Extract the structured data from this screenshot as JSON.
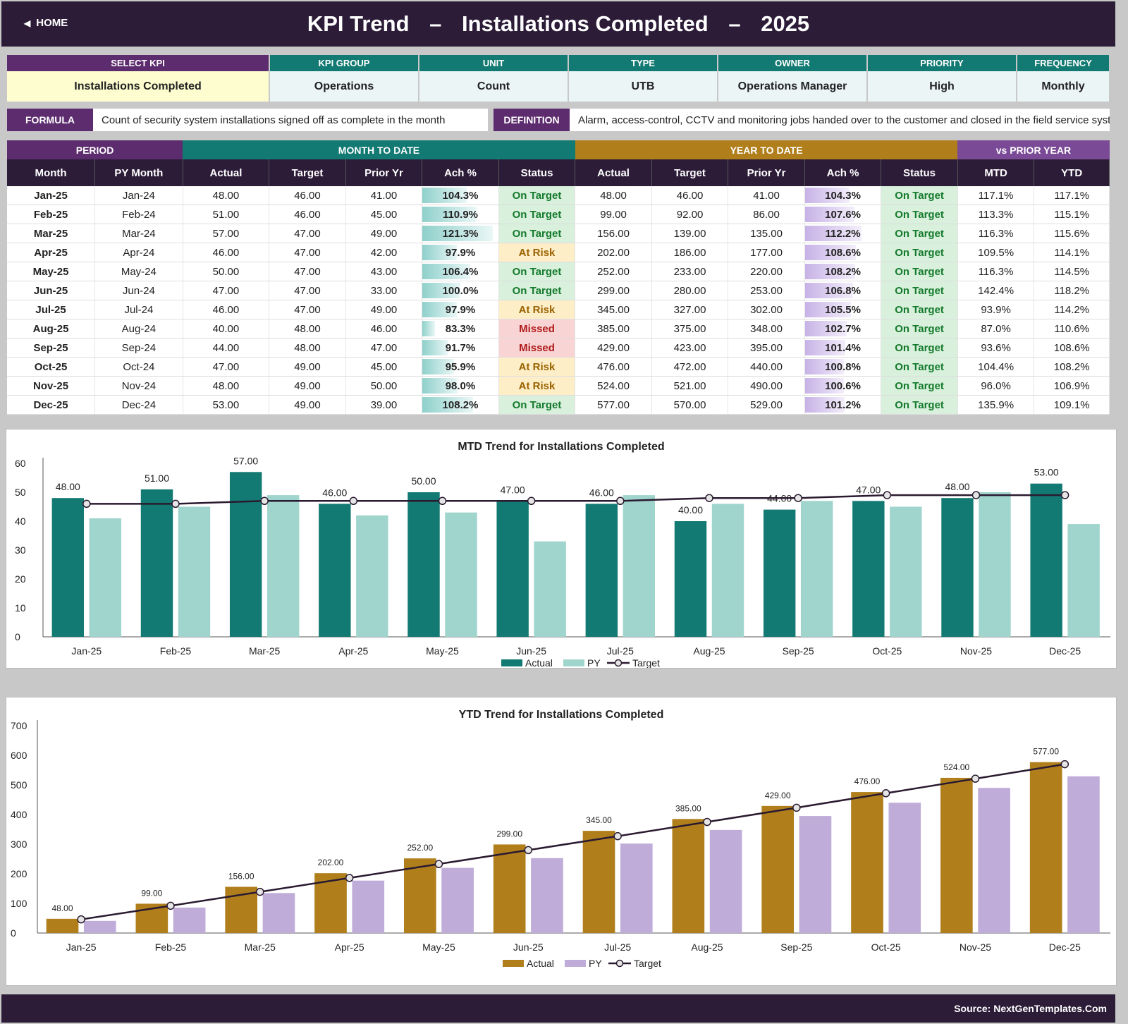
{
  "header": {
    "home_label": "HOME",
    "title_part1": "KPI Trend",
    "dash": "–",
    "title_part2": "Installations Completed",
    "title_year": "2025"
  },
  "meta": {
    "select_kpi_label": "SELECT KPI",
    "select_kpi_value": "Installations Completed",
    "kpi_group_label": "KPI GROUP",
    "kpi_group_value": "Operations",
    "unit_label": "UNIT",
    "unit_value": "Count",
    "type_label": "TYPE",
    "type_value": "UTB",
    "owner_label": "OWNER",
    "owner_value": "Operations Manager",
    "priority_label": "PRIORITY",
    "priority_value": "High",
    "frequency_label": "FREQUENCY",
    "frequency_value": "Monthly"
  },
  "formula": {
    "formula_label": "FORMULA",
    "formula_text": "Count of security system installations signed off as complete in the month",
    "definition_label": "DEFINITION",
    "definition_text": "Alarm, access-control, CCTV and monitoring jobs handed over to the customer and closed in the field service system."
  },
  "table": {
    "groups": {
      "period": "PERIOD",
      "mtd": "MONTH TO DATE",
      "ytd": "YEAR TO DATE",
      "vspy": "vs PRIOR YEAR"
    },
    "columns": [
      "Month",
      "PY Month",
      "Actual",
      "Target",
      "Prior Yr",
      "Ach %",
      "Status",
      "Actual",
      "Target",
      "Prior Yr",
      "Ach %",
      "Status",
      "MTD",
      "YTD"
    ],
    "rows": [
      {
        "month": "Jan-25",
        "py_month": "Jan-24",
        "mtd_actual": "48.00",
        "mtd_target": "46.00",
        "mtd_prior": "41.00",
        "mtd_ach": "104.3%",
        "mtd_status": "On Target",
        "ytd_actual": "48.00",
        "ytd_target": "46.00",
        "ytd_prior": "41.00",
        "ytd_ach": "104.3%",
        "ytd_status": "On Target",
        "vs_mtd": "117.1%",
        "vs_ytd": "117.1%"
      },
      {
        "month": "Feb-25",
        "py_month": "Feb-24",
        "mtd_actual": "51.00",
        "mtd_target": "46.00",
        "mtd_prior": "45.00",
        "mtd_ach": "110.9%",
        "mtd_status": "On Target",
        "ytd_actual": "99.00",
        "ytd_target": "92.00",
        "ytd_prior": "86.00",
        "ytd_ach": "107.6%",
        "ytd_status": "On Target",
        "vs_mtd": "113.3%",
        "vs_ytd": "115.1%"
      },
      {
        "month": "Mar-25",
        "py_month": "Mar-24",
        "mtd_actual": "57.00",
        "mtd_target": "47.00",
        "mtd_prior": "49.00",
        "mtd_ach": "121.3%",
        "mtd_status": "On Target",
        "ytd_actual": "156.00",
        "ytd_target": "139.00",
        "ytd_prior": "135.00",
        "ytd_ach": "112.2%",
        "ytd_status": "On Target",
        "vs_mtd": "116.3%",
        "vs_ytd": "115.6%"
      },
      {
        "month": "Apr-25",
        "py_month": "Apr-24",
        "mtd_actual": "46.00",
        "mtd_target": "47.00",
        "mtd_prior": "42.00",
        "mtd_ach": "97.9%",
        "mtd_status": "At Risk",
        "ytd_actual": "202.00",
        "ytd_target": "186.00",
        "ytd_prior": "177.00",
        "ytd_ach": "108.6%",
        "ytd_status": "On Target",
        "vs_mtd": "109.5%",
        "vs_ytd": "114.1%"
      },
      {
        "month": "May-25",
        "py_month": "May-24",
        "mtd_actual": "50.00",
        "mtd_target": "47.00",
        "mtd_prior": "43.00",
        "mtd_ach": "106.4%",
        "mtd_status": "On Target",
        "ytd_actual": "252.00",
        "ytd_target": "233.00",
        "ytd_prior": "220.00",
        "ytd_ach": "108.2%",
        "ytd_status": "On Target",
        "vs_mtd": "116.3%",
        "vs_ytd": "114.5%"
      },
      {
        "month": "Jun-25",
        "py_month": "Jun-24",
        "mtd_actual": "47.00",
        "mtd_target": "47.00",
        "mtd_prior": "33.00",
        "mtd_ach": "100.0%",
        "mtd_status": "On Target",
        "ytd_actual": "299.00",
        "ytd_target": "280.00",
        "ytd_prior": "253.00",
        "ytd_ach": "106.8%",
        "ytd_status": "On Target",
        "vs_mtd": "142.4%",
        "vs_ytd": "118.2%"
      },
      {
        "month": "Jul-25",
        "py_month": "Jul-24",
        "mtd_actual": "46.00",
        "mtd_target": "47.00",
        "mtd_prior": "49.00",
        "mtd_ach": "97.9%",
        "mtd_status": "At Risk",
        "ytd_actual": "345.00",
        "ytd_target": "327.00",
        "ytd_prior": "302.00",
        "ytd_ach": "105.5%",
        "ytd_status": "On Target",
        "vs_mtd": "93.9%",
        "vs_ytd": "114.2%"
      },
      {
        "month": "Aug-25",
        "py_month": "Aug-24",
        "mtd_actual": "40.00",
        "mtd_target": "48.00",
        "mtd_prior": "46.00",
        "mtd_ach": "83.3%",
        "mtd_status": "Missed",
        "ytd_actual": "385.00",
        "ytd_target": "375.00",
        "ytd_prior": "348.00",
        "ytd_ach": "102.7%",
        "ytd_status": "On Target",
        "vs_mtd": "87.0%",
        "vs_ytd": "110.6%"
      },
      {
        "month": "Sep-25",
        "py_month": "Sep-24",
        "mtd_actual": "44.00",
        "mtd_target": "48.00",
        "mtd_prior": "47.00",
        "mtd_ach": "91.7%",
        "mtd_status": "Missed",
        "ytd_actual": "429.00",
        "ytd_target": "423.00",
        "ytd_prior": "395.00",
        "ytd_ach": "101.4%",
        "ytd_status": "On Target",
        "vs_mtd": "93.6%",
        "vs_ytd": "108.6%"
      },
      {
        "month": "Oct-25",
        "py_month": "Oct-24",
        "mtd_actual": "47.00",
        "mtd_target": "49.00",
        "mtd_prior": "45.00",
        "mtd_ach": "95.9%",
        "mtd_status": "At Risk",
        "ytd_actual": "476.00",
        "ytd_target": "472.00",
        "ytd_prior": "440.00",
        "ytd_ach": "100.8%",
        "ytd_status": "On Target",
        "vs_mtd": "104.4%",
        "vs_ytd": "108.2%"
      },
      {
        "month": "Nov-25",
        "py_month": "Nov-24",
        "mtd_actual": "48.00",
        "mtd_target": "49.00",
        "mtd_prior": "50.00",
        "mtd_ach": "98.0%",
        "mtd_status": "At Risk",
        "ytd_actual": "524.00",
        "ytd_target": "521.00",
        "ytd_prior": "490.00",
        "ytd_ach": "100.6%",
        "ytd_status": "On Target",
        "vs_mtd": "96.0%",
        "vs_ytd": "106.9%"
      },
      {
        "month": "Dec-25",
        "py_month": "Dec-24",
        "mtd_actual": "53.00",
        "mtd_target": "49.00",
        "mtd_prior": "39.00",
        "mtd_ach": "108.2%",
        "mtd_status": "On Target",
        "ytd_actual": "577.00",
        "ytd_target": "570.00",
        "ytd_prior": "529.00",
        "ytd_ach": "101.2%",
        "ytd_status": "On Target",
        "vs_mtd": "135.9%",
        "vs_ytd": "109.1%"
      }
    ]
  },
  "colors": {
    "header_bg": "#2c1c38",
    "teal": "#127a72",
    "teal_light": "#9fd5cc",
    "gold": "#b07f1c",
    "lavender": "#c0acd9",
    "purple": "#5c2c6e",
    "target_line": "#2a1a30"
  },
  "chart_data": [
    {
      "type": "bar",
      "title": "MTD Trend for Installations Completed",
      "categories": [
        "Jan-25",
        "Feb-25",
        "Mar-25",
        "Apr-25",
        "May-25",
        "Jun-25",
        "Jul-25",
        "Aug-25",
        "Sep-25",
        "Oct-25",
        "Nov-25",
        "Dec-25"
      ],
      "series": [
        {
          "name": "Actual",
          "kind": "bar",
          "values": [
            48,
            51,
            57,
            46,
            50,
            47,
            46,
            40,
            44,
            47,
            48,
            53
          ]
        },
        {
          "name": "PY",
          "kind": "bar",
          "values": [
            41,
            45,
            49,
            42,
            43,
            33,
            49,
            46,
            47,
            45,
            50,
            39
          ]
        },
        {
          "name": "Target",
          "kind": "line",
          "values": [
            46,
            46,
            47,
            47,
            47,
            47,
            47,
            48,
            48,
            49,
            49,
            49
          ]
        }
      ],
      "data_labels": [
        "48.00",
        "51.00",
        "57.00",
        "46.00",
        "50.00",
        "47.00",
        "46.00",
        "40.00",
        "44.00",
        "47.00",
        "48.00",
        "53.00"
      ],
      "ylim": [
        0,
        60
      ],
      "yticks": [
        "0",
        "10",
        "20",
        "30",
        "40",
        "50",
        "60"
      ],
      "grid": false,
      "legend": "bottom"
    },
    {
      "type": "bar",
      "title": "YTD Trend for Installations Completed",
      "categories": [
        "Jan-25",
        "Feb-25",
        "Mar-25",
        "Apr-25",
        "May-25",
        "Jun-25",
        "Jul-25",
        "Aug-25",
        "Sep-25",
        "Oct-25",
        "Nov-25",
        "Dec-25"
      ],
      "series": [
        {
          "name": "Actual",
          "kind": "bar",
          "values": [
            48,
            99,
            156,
            202,
            252,
            299,
            345,
            385,
            429,
            476,
            524,
            577
          ]
        },
        {
          "name": "PY",
          "kind": "bar",
          "values": [
            41,
            86,
            135,
            177,
            220,
            253,
            302,
            348,
            395,
            440,
            490,
            529
          ]
        },
        {
          "name": "Target",
          "kind": "line",
          "values": [
            46,
            92,
            139,
            186,
            233,
            280,
            327,
            375,
            423,
            472,
            521,
            570
          ]
        }
      ],
      "data_labels": [
        "48.00",
        "99.00",
        "156.00",
        "202.00",
        "252.00",
        "299.00",
        "345.00",
        "385.00",
        "429.00",
        "476.00",
        "524.00",
        "577.00"
      ],
      "ylim": [
        0,
        700
      ],
      "yticks": [
        "0",
        "100",
        "200",
        "300",
        "400",
        "500",
        "600",
        "700"
      ],
      "grid": false,
      "legend": "bottom"
    }
  ],
  "footer": {
    "source": "Source: NextGenTemplates.Com"
  }
}
